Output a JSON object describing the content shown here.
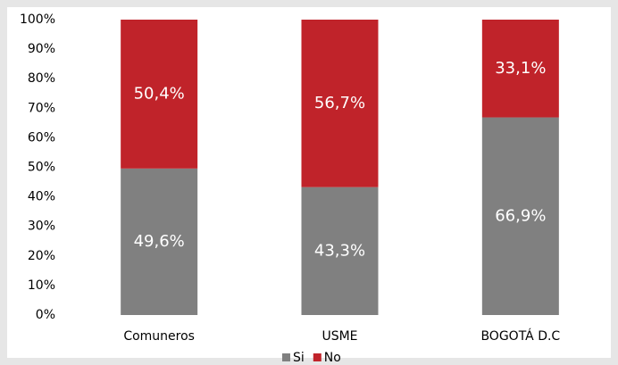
{
  "chart_data": {
    "type": "stacked_bar",
    "categories": [
      "Comuneros",
      "USME",
      "BOGOTÁ D.C"
    ],
    "series": [
      {
        "name": "Si",
        "color": "#808080",
        "values": [
          49.6,
          43.3,
          66.9
        ],
        "value_labels": [
          "49,6%",
          "43,3%",
          "66,9%"
        ]
      },
      {
        "name": "No",
        "color": "#c0232a",
        "values": [
          50.4,
          56.7,
          33.1
        ],
        "value_labels": [
          "50,4%",
          "56,7%",
          "33,1%"
        ]
      }
    ],
    "ylim": [
      0,
      100
    ],
    "yticks": [
      {
        "value": 0,
        "label": "0%"
      },
      {
        "value": 10,
        "label": "10%"
      },
      {
        "value": 20,
        "label": "20%"
      },
      {
        "value": 30,
        "label": "30%"
      },
      {
        "value": 40,
        "label": "40%"
      },
      {
        "value": 50,
        "label": "50%"
      },
      {
        "value": 60,
        "label": "60%"
      },
      {
        "value": 70,
        "label": "70%"
      },
      {
        "value": 80,
        "label": "80%"
      },
      {
        "value": 90,
        "label": "90%"
      },
      {
        "value": 100,
        "label": "100%"
      }
    ],
    "grid": false,
    "legend": "bottom"
  }
}
